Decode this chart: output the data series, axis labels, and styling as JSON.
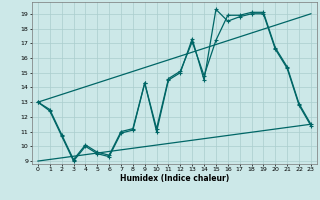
{
  "title": "",
  "xlabel": "Humidex (Indice chaleur)",
  "ylabel": "",
  "background_color": "#cce8e8",
  "grid_color": "#aacece",
  "line_color": "#006666",
  "xlim": [
    -0.5,
    23.5
  ],
  "ylim": [
    8.8,
    19.8
  ],
  "yticks": [
    9,
    10,
    11,
    12,
    13,
    14,
    15,
    16,
    17,
    18,
    19
  ],
  "xticks": [
    0,
    1,
    2,
    3,
    4,
    5,
    6,
    7,
    8,
    9,
    10,
    11,
    12,
    13,
    14,
    15,
    16,
    17,
    18,
    19,
    20,
    21,
    22,
    23
  ],
  "line1_x": [
    0,
    1,
    2,
    3,
    4,
    5,
    6,
    7,
    8,
    9,
    10,
    11,
    12,
    13,
    14,
    15,
    16,
    17,
    18,
    19,
    20,
    21,
    22,
    23
  ],
  "line1_y": [
    13.0,
    12.4,
    10.7,
    9.0,
    10.0,
    9.5,
    9.3,
    10.9,
    11.1,
    14.3,
    11.0,
    14.5,
    15.0,
    17.3,
    14.5,
    19.3,
    18.5,
    18.8,
    19.0,
    19.0,
    16.6,
    15.3,
    12.8,
    11.4
  ],
  "line2_x": [
    0,
    1,
    2,
    3,
    4,
    5,
    6,
    7,
    8,
    9,
    10,
    11,
    12,
    13,
    14,
    15,
    16,
    17,
    18,
    19,
    20,
    21,
    22,
    23
  ],
  "line2_y": [
    13.0,
    12.5,
    10.8,
    9.1,
    10.1,
    9.6,
    9.4,
    11.0,
    11.2,
    14.3,
    11.2,
    14.6,
    15.1,
    17.1,
    14.8,
    17.2,
    18.9,
    18.9,
    19.1,
    19.1,
    16.7,
    15.4,
    12.9,
    11.5
  ],
  "line3_x": [
    0,
    23
  ],
  "line3_y": [
    9.0,
    11.5
  ],
  "line4_x": [
    0,
    23
  ],
  "line4_y": [
    13.0,
    19.0
  ]
}
